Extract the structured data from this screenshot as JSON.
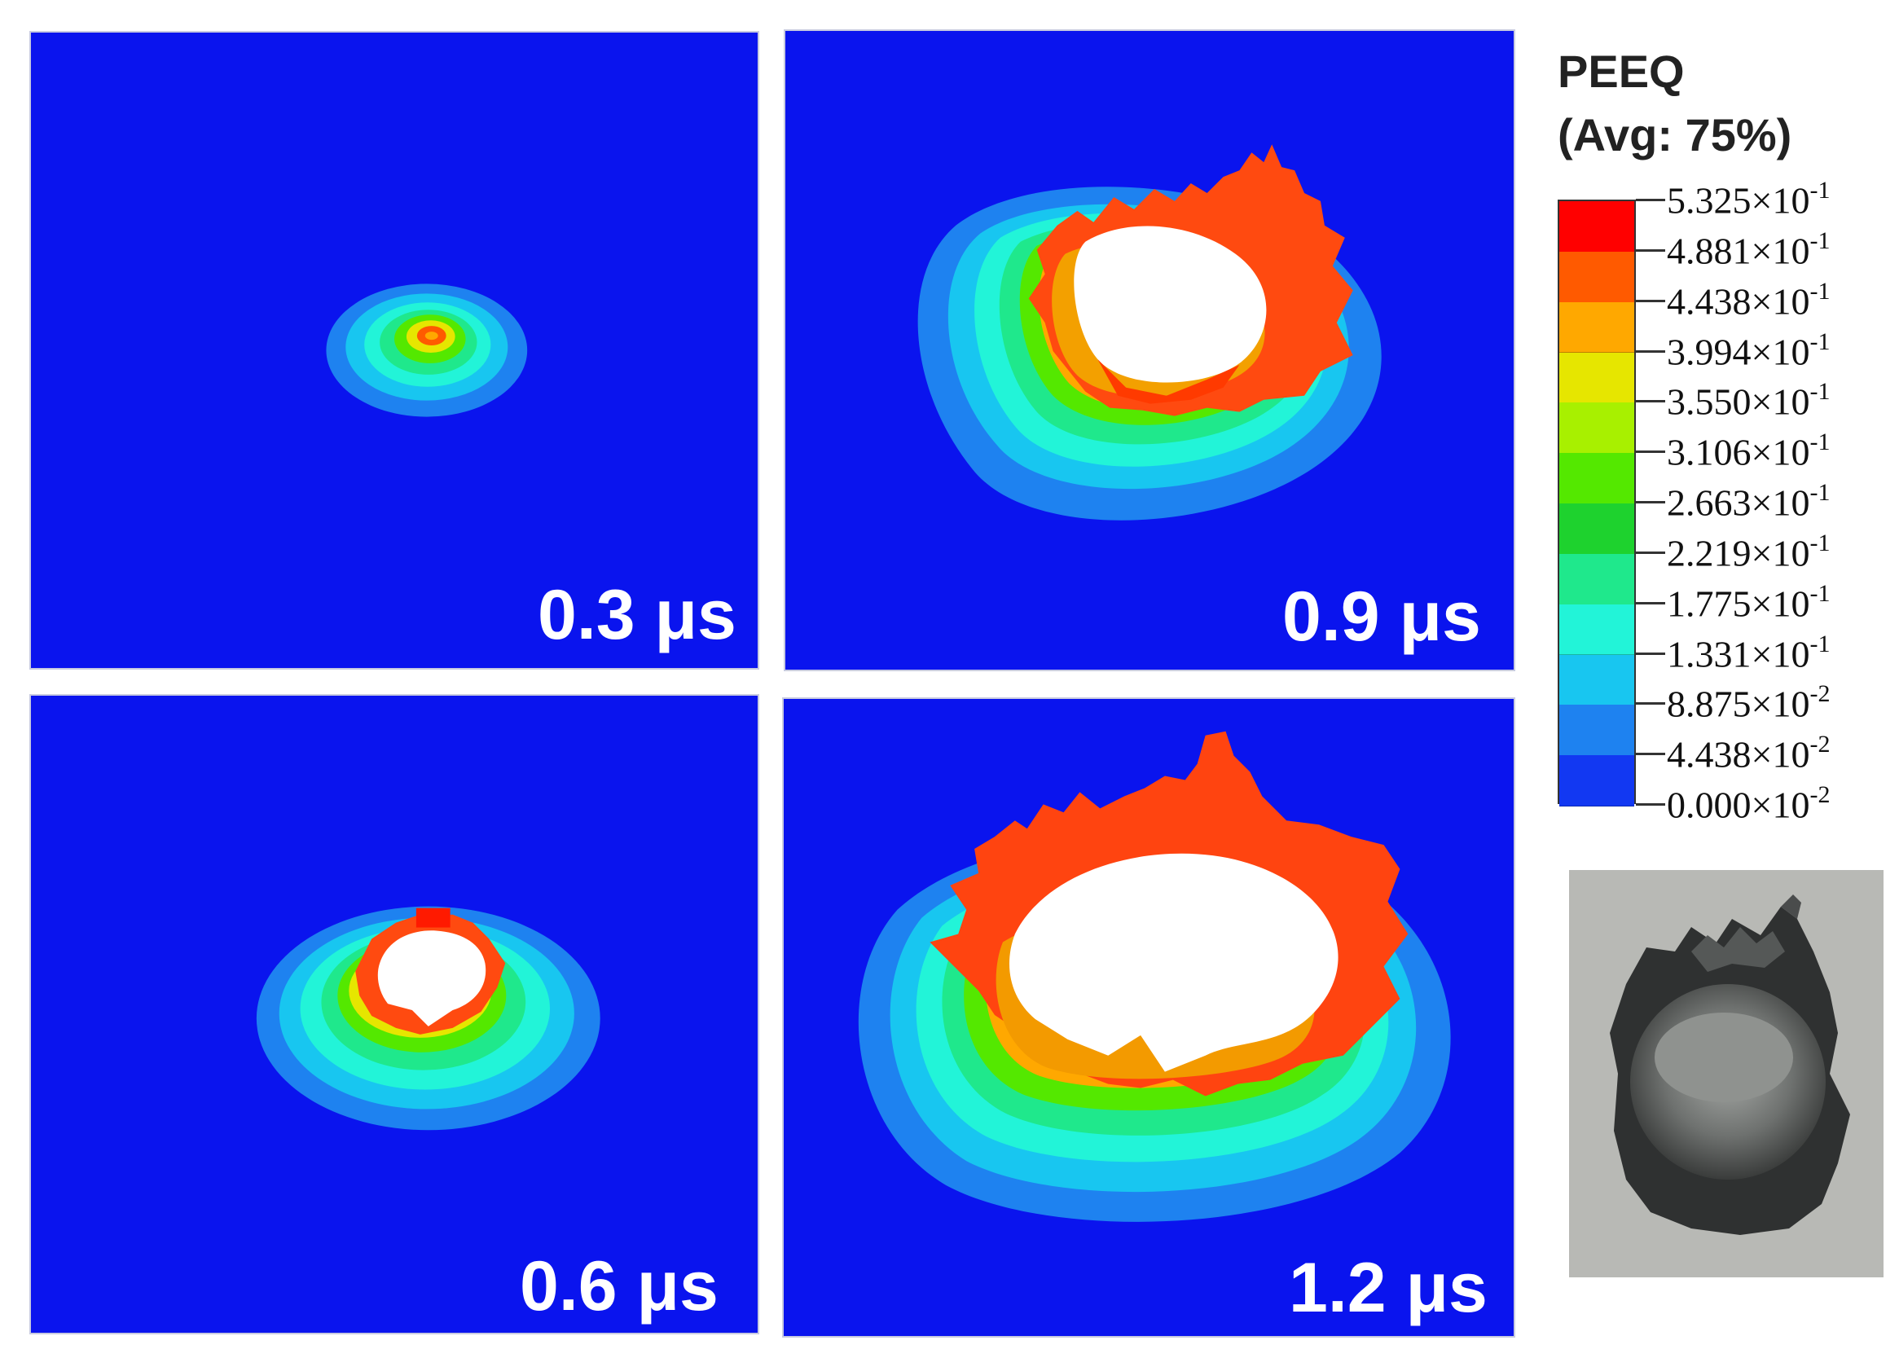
{
  "panels": [
    {
      "id": "p1",
      "time_label": "0.3 μs"
    },
    {
      "id": "p2",
      "time_label": "0.9 μs"
    },
    {
      "id": "p3",
      "time_label": "0.6 μs"
    },
    {
      "id": "p4",
      "time_label": "1.2 μs"
    }
  ],
  "legend": {
    "title_line1": "PEEQ",
    "title_line2": "(Avg: 75%)",
    "ticks": [
      {
        "mantissa": "5.325×10",
        "exponent": "-1"
      },
      {
        "mantissa": "4.881×10",
        "exponent": "-1"
      },
      {
        "mantissa": "4.438×10",
        "exponent": "-1"
      },
      {
        "mantissa": "3.994×10",
        "exponent": "-1"
      },
      {
        "mantissa": "3.550×10",
        "exponent": "-1"
      },
      {
        "mantissa": "3.106×10",
        "exponent": "-1"
      },
      {
        "mantissa": "2.663×10",
        "exponent": "-1"
      },
      {
        "mantissa": "2.219×10",
        "exponent": "-1"
      },
      {
        "mantissa": "1.775×10",
        "exponent": "-1"
      },
      {
        "mantissa": "1.331×10",
        "exponent": "-1"
      },
      {
        "mantissa": "8.875×10",
        "exponent": "-2"
      },
      {
        "mantissa": "4.438×10",
        "exponent": "-2"
      },
      {
        "mantissa": "0.000×10",
        "exponent": "-2"
      }
    ],
    "colors": [
      "#ff0000",
      "#ff5a00",
      "#ffa800",
      "#e6e600",
      "#a8f000",
      "#54e800",
      "#1ed22e",
      "#1fe88c",
      "#22f4d8",
      "#18c6f0",
      "#1e82f0",
      "#1238f2"
    ]
  },
  "colors": {
    "background": "#0a14ee",
    "hole": "#ffffff"
  }
}
